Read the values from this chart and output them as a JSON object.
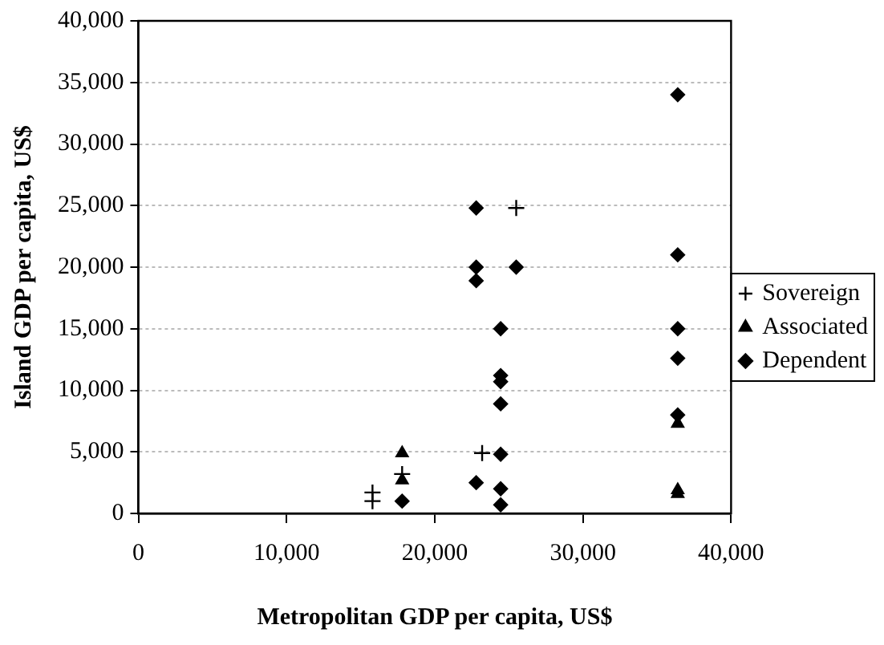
{
  "chart_data": {
    "type": "scatter",
    "xlabel": "Metropolitan GDP per capita, US$",
    "ylabel": "Island GDP per capita, US$",
    "xlim": [
      0,
      40000
    ],
    "xticks": [
      0,
      {
        "value": 10000,
        "label": "10,000"
      },
      {
        "value": 20000,
        "label": "20,000"
      },
      {
        "value": 30000,
        "label": "30,000"
      },
      {
        "value": 40000,
        "label": "40,000"
      }
    ],
    "ylim": [
      0,
      40000
    ],
    "yticks": [
      0,
      {
        "value": 5000,
        "label": "5,000"
      },
      {
        "value": 10000,
        "label": "10,000"
      },
      {
        "value": 15000,
        "label": "15,000"
      },
      {
        "value": 20000,
        "label": "20,000"
      },
      {
        "value": 25000,
        "label": "25,000"
      },
      {
        "value": 30000,
        "label": "30,000"
      },
      {
        "value": 35000,
        "label": "35,000"
      },
      {
        "value": 40000,
        "label": "40,000"
      }
    ],
    "grid": "y",
    "legend": "right",
    "series": [
      {
        "name": "Sovereign",
        "color": "#000000",
        "marker": "cross",
        "x": [
          15800,
          15800,
          17800,
          23200,
          25500
        ],
        "values": [
          1700,
          1000,
          3200,
          4900,
          24800
        ]
      },
      {
        "name": "Associated",
        "color": "#000000",
        "marker": "triangle",
        "x": [
          17800,
          17800,
          36400,
          36400,
          36400
        ],
        "values": [
          4900,
          2700,
          7300,
          1900,
          1600
        ]
      },
      {
        "name": "Dependent",
        "color": "#000000",
        "marker": "diamond",
        "x": [
          17800,
          22800,
          22800,
          22800,
          22800,
          24450,
          24450,
          24450,
          24450,
          24450,
          24450,
          24450,
          25500,
          36400,
          36400,
          36400,
          36400,
          36400
        ],
        "values": [
          1000,
          24800,
          20000,
          18900,
          2500,
          15000,
          11200,
          10700,
          8900,
          4800,
          2000,
          700,
          20000,
          34000,
          21000,
          15000,
          12600,
          8000
        ]
      }
    ]
  }
}
